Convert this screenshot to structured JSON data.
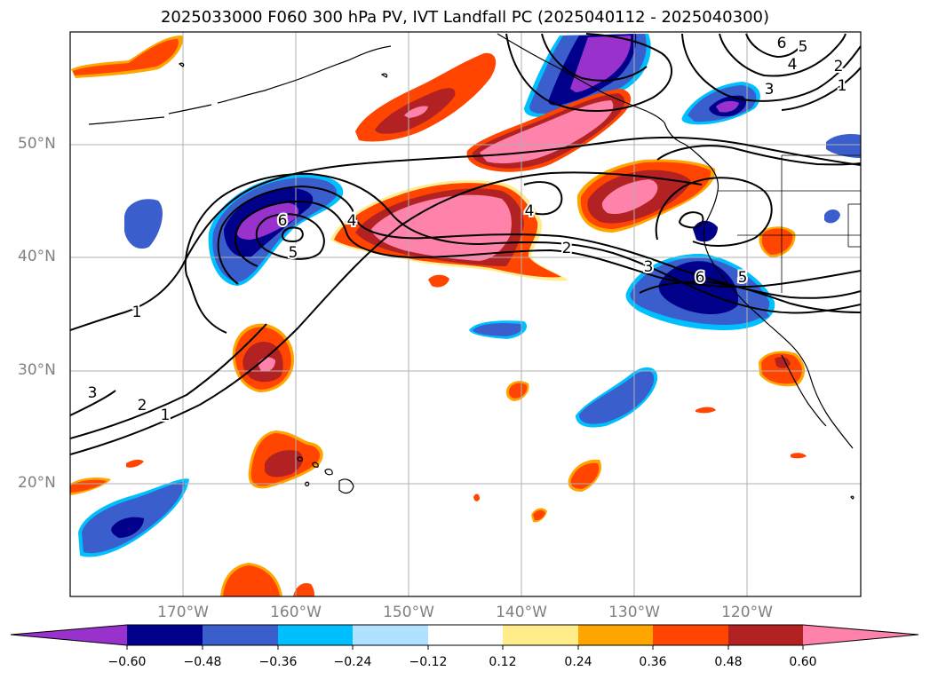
{
  "title": "2025033000 F060 300 hPa PV, IVT Landfall PC (2025040112 - 2025040300)",
  "lat_labels": [
    "50°N",
    "40°N",
    "30°N",
    "20°N"
  ],
  "lon_labels": [
    "170°W",
    "160°W",
    "150°W",
    "140°W",
    "130°W",
    "120°W"
  ],
  "colorbar": {
    "colors": [
      "#9932cc",
      "#00008b",
      "#3a5fcd",
      "#00bfff",
      "#b0e2ff",
      "#ffffff",
      "#ffec8b",
      "#ffa500",
      "#ff4500",
      "#b22222",
      "#ff82ab"
    ],
    "tick_labels": [
      "−0.60",
      "−0.48",
      "−0.36",
      "−0.24",
      "−0.12",
      "0.12",
      "0.24",
      "0.36",
      "0.48",
      "0.60"
    ]
  },
  "contour_labels": [
    "1",
    "2",
    "3",
    "4",
    "5",
    "6",
    "1",
    "2",
    "3",
    "4",
    "5",
    "6",
    "1",
    "2",
    "3",
    "4",
    "5",
    "6"
  ]
}
